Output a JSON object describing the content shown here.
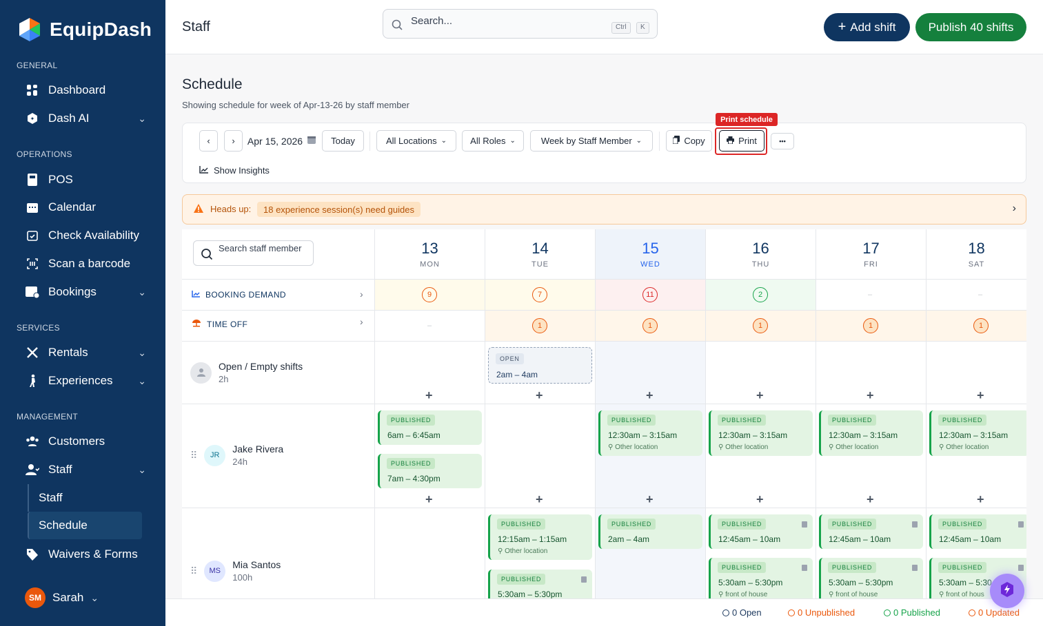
{
  "app": {
    "name": "EquipDash"
  },
  "sidebar": {
    "sections": {
      "general": "GENERAL",
      "operations": "OPERATIONS",
      "services": "SERVICES",
      "management": "MANAGEMENT"
    },
    "items": {
      "dashboard": "Dashboard",
      "dash_ai": "Dash AI",
      "pos": "POS",
      "calendar": "Calendar",
      "check_availability": "Check Availability",
      "scan_barcode": "Scan a barcode",
      "bookings": "Bookings",
      "rentals": "Rentals",
      "experiences": "Experiences",
      "customers": "Customers",
      "staff": "Staff",
      "staff_sub": "Staff",
      "schedule_sub": "Schedule",
      "waivers": "Waivers & Forms"
    },
    "user": {
      "initials": "SM",
      "name": "Sarah"
    }
  },
  "header": {
    "title": "Staff",
    "search_placeholder": "Search...",
    "kbd_ctrl": "Ctrl",
    "kbd_k": "K",
    "add_shift": "Add shift",
    "publish": "Publish 40 shifts"
  },
  "schedule": {
    "title": "Schedule",
    "subtitle": "Showing schedule for week of Apr-13-26 by staff member",
    "toolbar": {
      "date": "Apr 15, 2026",
      "today": "Today",
      "locations": "All Locations",
      "roles": "All Roles",
      "view": "Week by Staff Member",
      "copy": "Copy",
      "print": "Print",
      "more": "•••",
      "tooltip": "Print schedule",
      "insights": "Show Insights"
    },
    "alert": {
      "label": "Heads up:",
      "message": "18 experience session(s) need guides"
    },
    "staff_search_placeholder": "Search staff member",
    "days": [
      {
        "date": "13",
        "dow": "MON"
      },
      {
        "date": "14",
        "dow": "TUE"
      },
      {
        "date": "15",
        "dow": "WED"
      },
      {
        "date": "16",
        "dow": "THU"
      },
      {
        "date": "17",
        "dow": "FRI"
      },
      {
        "date": "18",
        "dow": "SAT"
      }
    ],
    "booking_demand": {
      "label": "BOOKING DEMAND",
      "values": [
        "9",
        "7",
        "11",
        "2",
        "–",
        "–"
      ]
    },
    "time_off": {
      "label": "TIME OFF",
      "values": [
        "–",
        "1",
        "1",
        "1",
        "1",
        "1"
      ]
    },
    "open_shifts": {
      "name": "Open / Empty shifts",
      "hours": "2h",
      "shift_status": "OPEN",
      "shift_time": "2am – 4am"
    },
    "staff": [
      {
        "initials": "JR",
        "name": "Jake Rivera",
        "hours": "24h"
      },
      {
        "initials": "MS",
        "name": "Mia Santos",
        "hours": "100h"
      }
    ],
    "shift_labels": {
      "published": "PUBLISHED",
      "jr_mon_1": "6am – 6:45am",
      "jr_mon_2": "7am – 4:30pm",
      "jr_other": "12:30am – 3:15am",
      "other_location": "Other location",
      "ms_tue_1": "12:15am – 1:15am",
      "ms_tue_2": "5:30am – 5:30pm",
      "ms_wed": "2am – 4am",
      "ms_morning": "12:45am – 10am",
      "ms_evening": "5:30am – 5:30pm",
      "ms_evening_short": "5:30am – 5:30",
      "front_of_house": "front of house",
      "front_of_house_short": "front of hous"
    }
  },
  "footer": {
    "open": "0 Open",
    "unpublished": "0 Unpublished",
    "published": "0 Published",
    "updated": "0 Updated"
  },
  "colors": {
    "sidebar": "#0f3560",
    "primary": "#0f3560",
    "publish": "#15803d",
    "alert": "#dc2626"
  }
}
